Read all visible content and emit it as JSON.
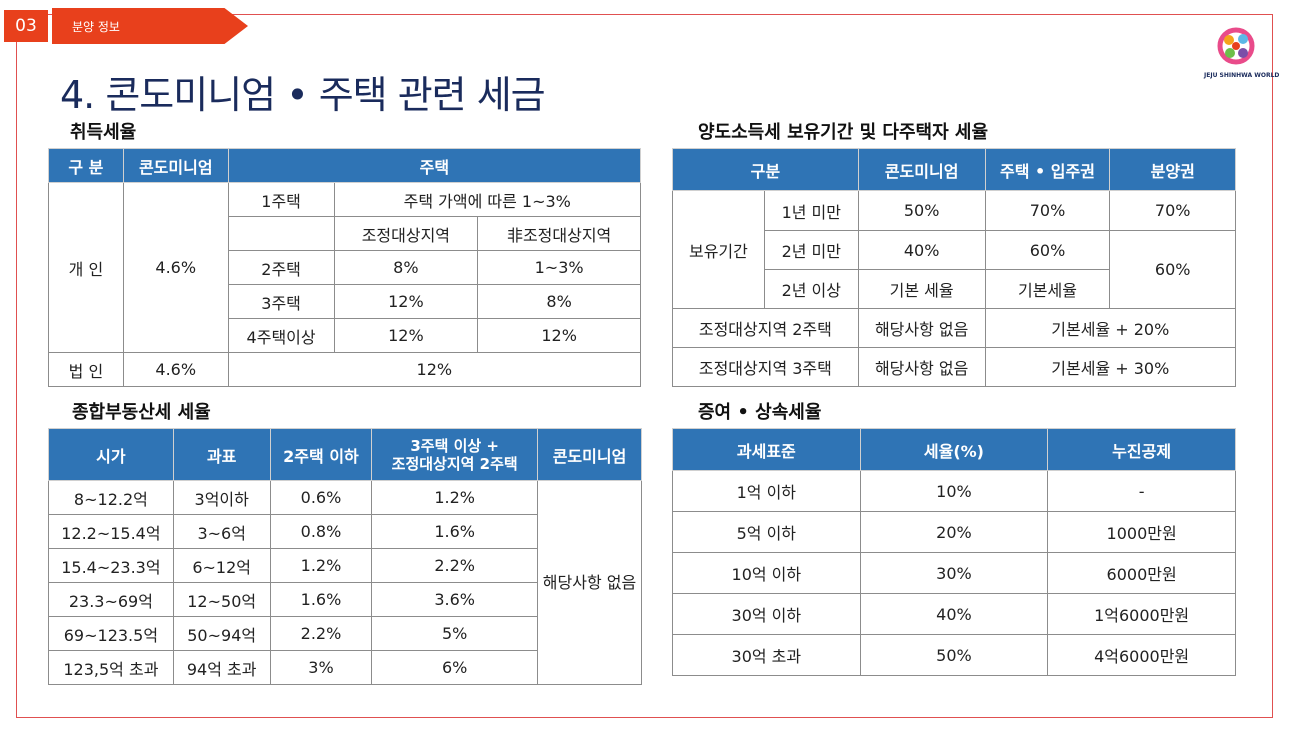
{
  "header": {
    "page_number": "03",
    "section_label": "분양 정보",
    "title": "4. 콘도미니엄 • 주택 관련 세금"
  },
  "logo": {
    "text": "JEJU SHINHWA WORLD"
  },
  "acquisition": {
    "heading": "취득세율",
    "h_type": "구 분",
    "h_condo": "콘도미니엄",
    "h_house": "주택",
    "individual": "개 인",
    "individual_condo": "4.6%",
    "r1_label": "1주택",
    "r1_value": "주택 가액에 따른 1~3%",
    "sub_a": "조정대상지역",
    "sub_b": "非조정대상지역",
    "r2_label": "2주택",
    "r2_a": "8%",
    "r2_b": "1~3%",
    "r3_label": "3주택",
    "r3_a": "12%",
    "r3_b": "8%",
    "r4_label": "4주택이상",
    "r4_a": "12%",
    "r4_b": "12%",
    "corp": "법 인",
    "corp_condo": "4.6%",
    "corp_house": "12%"
  },
  "transfer": {
    "heading": "양도소득세 보유기간 및 다주택자 세율",
    "h_type": "구분",
    "h_condo": "콘도미니엄",
    "h_house": "주택 • 입주권",
    "h_presale": "분양권",
    "holding": "보유기간",
    "p1": "1년 미만",
    "p1_condo": "50%",
    "p1_house": "70%",
    "p1_presale": "70%",
    "p2": "2년 미만",
    "p2_condo": "40%",
    "p2_house": "60%",
    "p23_presale": "60%",
    "p3": "2년 이상",
    "p3_condo": "기본 세율",
    "p3_house": "기본세율",
    "adj2": "조정대상지역 2주택",
    "adj2_condo": "해당사항 없음",
    "adj2_rate": "기본세율 + 20%",
    "adj3": "조정대상지역 3주택",
    "adj3_condo": "해당사항 없음",
    "adj3_rate": "기본세율 + 30%"
  },
  "property": {
    "heading": "종합부동산세 세율",
    "h_price": "시가",
    "h_base": "과표",
    "h_two": "2주택 이하",
    "h_three_1": "3주택 이상 +",
    "h_three_2": "조정대상지역 2주택",
    "h_condo": "콘도미니엄",
    "condo_note": "해당사항 없음",
    "rows": [
      {
        "price": "8~12.2억",
        "base": "3억이하",
        "two": "0.6%",
        "three": "1.2%"
      },
      {
        "price": "12.2~15.4억",
        "base": "3~6억",
        "two": "0.8%",
        "three": "1.6%"
      },
      {
        "price": "15.4~23.3억",
        "base": "6~12억",
        "two": "1.2%",
        "three": "2.2%"
      },
      {
        "price": "23.3~69억",
        "base": "12~50억",
        "two": "1.6%",
        "three": "3.6%"
      },
      {
        "price": "69~123.5억",
        "base": "50~94억",
        "two": "2.2%",
        "three": "5%"
      },
      {
        "price": "123,5억 초과",
        "base": "94억 초과",
        "two": "3%",
        "three": "6%"
      }
    ]
  },
  "gift": {
    "heading": "증여 • 상속세율",
    "h_base": "과세표준",
    "h_rate": "세율(%)",
    "h_deduct": "누진공제",
    "rows": [
      {
        "base": "1억 이하",
        "rate": "10%",
        "deduct": "-"
      },
      {
        "base": "5억 이하",
        "rate": "20%",
        "deduct": "1000만원"
      },
      {
        "base": "10억 이하",
        "rate": "30%",
        "deduct": "6000만원"
      },
      {
        "base": "30억 이하",
        "rate": "40%",
        "deduct": "1억6000만원"
      },
      {
        "base": "30억 초과",
        "rate": "50%",
        "deduct": "4억6000만원"
      }
    ]
  }
}
